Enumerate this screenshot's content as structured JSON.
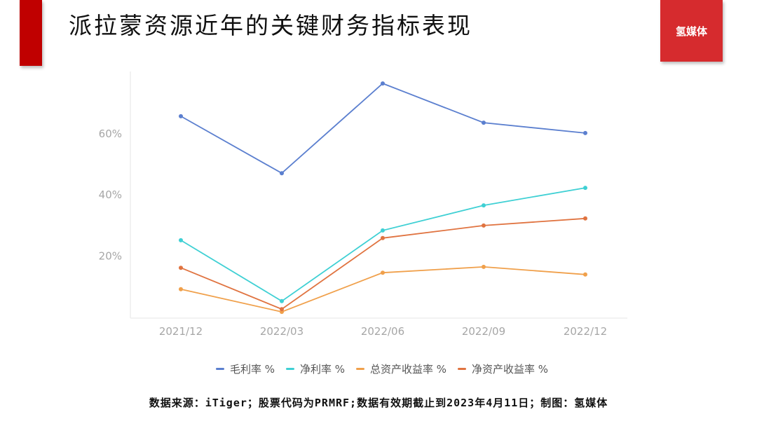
{
  "header": {
    "title": "派拉蒙资源近年的关键财务指标表现",
    "logo_text": "氢媒体"
  },
  "colors": {
    "accent_red": "#c00000",
    "logo_red": "#d62b2e",
    "gross_margin": "#5b7fcf",
    "net_margin": "#3fd0d4",
    "roa": "#f0a04b",
    "roe": "#e07340"
  },
  "legend": [
    {
      "label": "毛利率 %",
      "color": "#5b7fcf"
    },
    {
      "label": "净利率 %",
      "color": "#3fd0d4"
    },
    {
      "label": "总资产收益率 %",
      "color": "#f0a04b"
    },
    {
      "label": "净资产收益率 %",
      "color": "#e07340"
    }
  ],
  "footer": {
    "source": "数据来源：iTiger；股票代码为PRMRF;数据有效期截止到2023年4月11日；制图：氢媒体"
  },
  "chart_data": {
    "type": "line",
    "title": "派拉蒙资源近年的关键财务指标表现",
    "xlabel": "",
    "ylabel": "",
    "categories": [
      "2021/12",
      "2022/03",
      "2022/06",
      "2022/09",
      "2022/12"
    ],
    "yticks": [
      "20%",
      "40%",
      "60%"
    ],
    "ylim": [
      0,
      80
    ],
    "grid": false,
    "legend_position": "bottom",
    "series": [
      {
        "name": "毛利率 %",
        "color": "#5b7fcf",
        "values": [
          65.7,
          47.1,
          76.4,
          63.6,
          60.2
        ]
      },
      {
        "name": "净利率 %",
        "color": "#3fd0d4",
        "values": [
          25.2,
          5.3,
          28.4,
          36.6,
          42.3
        ]
      },
      {
        "name": "总资产收益率 %",
        "color": "#f0a04b",
        "values": [
          9.2,
          1.8,
          14.6,
          16.5,
          14.0
        ]
      },
      {
        "name": "净资产收益率 %",
        "color": "#e07340",
        "values": [
          16.2,
          2.7,
          25.9,
          30.0,
          32.3
        ]
      }
    ]
  }
}
